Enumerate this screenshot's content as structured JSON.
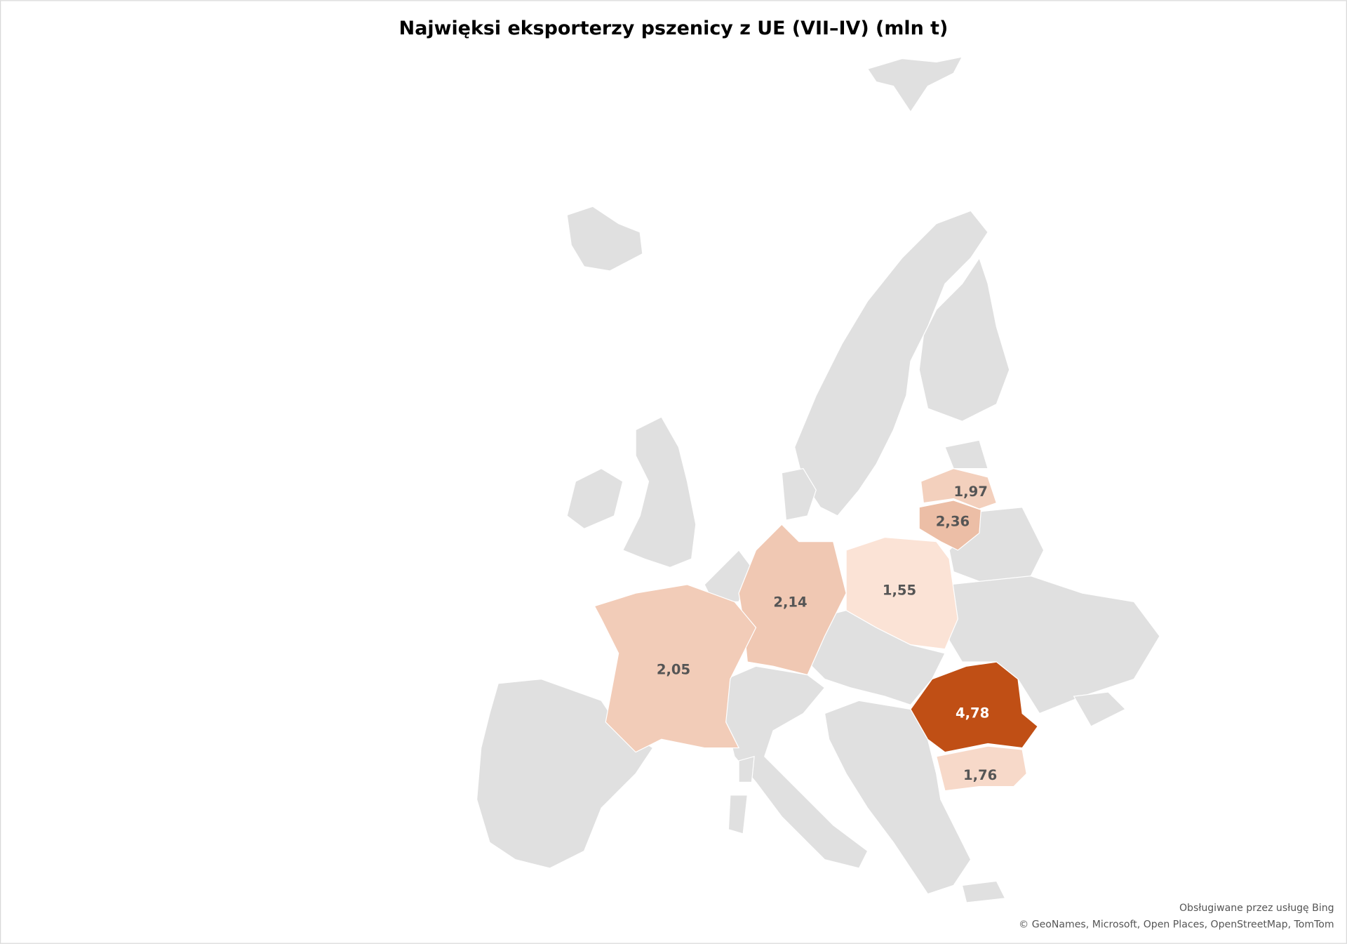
{
  "chart_data": {
    "type": "choropleth",
    "title": "Najwięksi eksporterzy pszenicy z UE (VII–IV) (mln t)",
    "values": [
      1.97,
      2.36,
      1.55,
      2.14,
      2.05,
      4.78,
      1.76
    ],
    "value_labels": [
      "1,97",
      "2,36",
      "1,55",
      "2,14",
      "2,05",
      "4,78",
      "1,76"
    ],
    "color_range": [
      "#fbe3d6",
      "#c04f15"
    ],
    "base_color": "#e0e0e0",
    "attribution": [
      "Obsługiwane przez usługę Bing",
      "© GeoNames, Microsoft, Open Places, OpenStreetMap, TomTom"
    ]
  }
}
